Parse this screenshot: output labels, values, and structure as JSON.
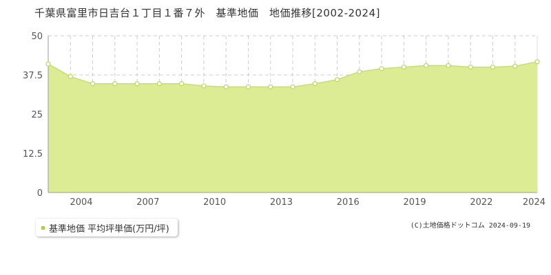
{
  "title": "千葉県富里市日吉台１丁目１番７外　基準地価　地価推移[2002-2024]",
  "legend": {
    "label": "基準地価 平均坪単価(万円/坪)"
  },
  "credit": "(C)土地価格ドットコム 2024-09-19",
  "colors": {
    "fill": "#dcec94",
    "line": "#c5e06a",
    "marker": "#bcd85a",
    "legend_swatch": "#a6d43a",
    "grid": "#cccccc"
  },
  "chart_data": {
    "type": "area",
    "title": "",
    "xlabel": "",
    "ylabel": "",
    "ylim": [
      0,
      50
    ],
    "xlim": [
      2002,
      2024
    ],
    "y_ticks": [
      "0",
      "12.5",
      "25",
      "37.5",
      "50"
    ],
    "x_tick_labels": [
      "2004",
      "2007",
      "2010",
      "2013",
      "2016",
      "2019",
      "2022",
      "2024"
    ],
    "grid": true,
    "legend_position": "bottom-left",
    "series": [
      {
        "name": "基準地価 平均坪単価(万円/坪)",
        "x": [
          2002,
          2003,
          2004,
          2005,
          2006,
          2007,
          2008,
          2009,
          2010,
          2011,
          2012,
          2013,
          2014,
          2015,
          2016,
          2017,
          2018,
          2019,
          2020,
          2021,
          2022,
          2023,
          2024
        ],
        "values": [
          41.0,
          37.0,
          34.7,
          34.7,
          34.7,
          34.7,
          34.7,
          34.0,
          33.7,
          33.7,
          33.7,
          33.7,
          34.7,
          36.0,
          38.5,
          39.5,
          40.0,
          40.5,
          40.5,
          40.0,
          40.0,
          40.3,
          41.7
        ]
      }
    ]
  }
}
